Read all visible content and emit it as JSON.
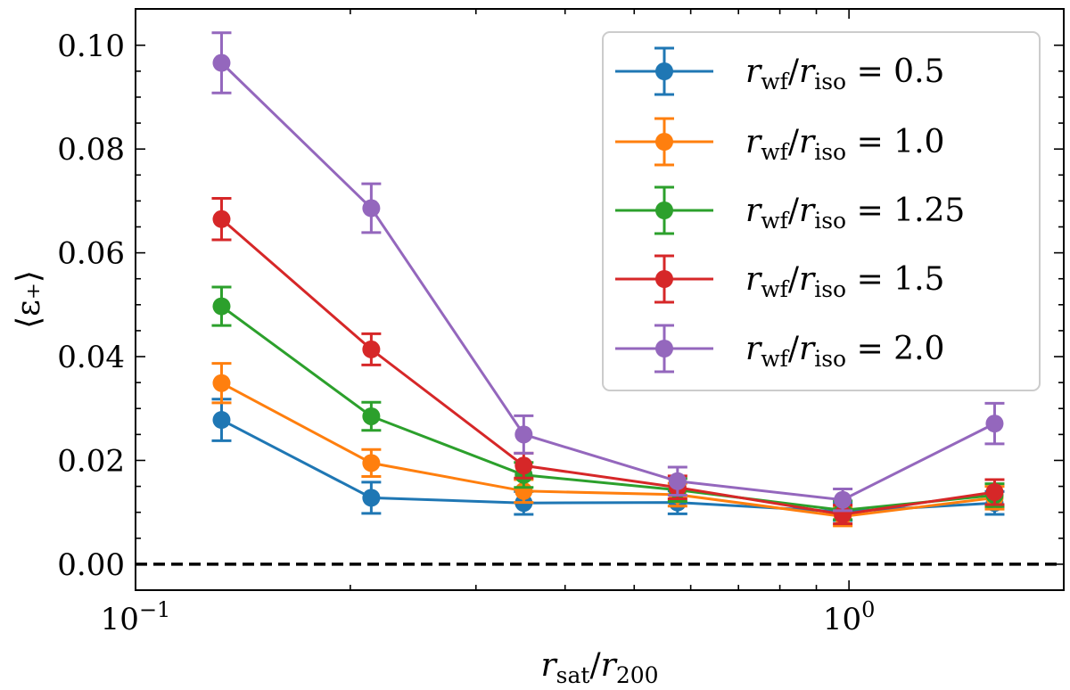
{
  "chart_data": {
    "type": "line",
    "xscale": "log",
    "x": [
      0.132,
      0.214,
      0.35,
      0.575,
      0.98,
      1.6
    ],
    "xlim": [
      0.1,
      2.0
    ],
    "ylim": [
      -0.005,
      0.107
    ],
    "xlabel": {
      "base": "r",
      "sub": "sat",
      "sep": "/",
      "base2": "r",
      "sub2": "200"
    },
    "ylabel": "⟨ε₊⟩",
    "x_ticks": [
      {
        "value": 0.1,
        "base": "10",
        "exp": "−1"
      },
      {
        "value": 1.0,
        "base": "10",
        "exp": "0"
      }
    ],
    "y_ticks": [
      {
        "value": 0.0,
        "label": "0.00"
      },
      {
        "value": 0.02,
        "label": "0.02"
      },
      {
        "value": 0.04,
        "label": "0.04"
      },
      {
        "value": 0.06,
        "label": "0.06"
      },
      {
        "value": 0.08,
        "label": "0.08"
      },
      {
        "value": 0.1,
        "label": "0.10"
      }
    ],
    "reference_line": {
      "y": 0.0,
      "style": "dashed",
      "color": "#000000"
    },
    "legend_position": "top-right",
    "series": [
      {
        "name": "0.5",
        "color": "#1f77b4",
        "values": [
          0.0278,
          0.0128,
          0.0118,
          0.0119,
          0.0101,
          0.0118
        ],
        "errors": [
          0.004,
          0.003,
          0.0022,
          0.0022,
          0.0017,
          0.0022
        ]
      },
      {
        "name": "1.0",
        "color": "#ff7f0e",
        "values": [
          0.0349,
          0.0195,
          0.0141,
          0.0134,
          0.0092,
          0.0128
        ],
        "errors": [
          0.0038,
          0.0026,
          0.0022,
          0.0022,
          0.0018,
          0.0022
        ]
      },
      {
        "name": "1.25",
        "color": "#2ca02c",
        "values": [
          0.0497,
          0.0285,
          0.0172,
          0.0143,
          0.0104,
          0.0133
        ],
        "errors": [
          0.0037,
          0.0027,
          0.0024,
          0.0022,
          0.0018,
          0.0022
        ]
      },
      {
        "name": "1.5",
        "color": "#d62728",
        "values": [
          0.0665,
          0.0414,
          0.019,
          0.0148,
          0.0096,
          0.0139
        ],
        "errors": [
          0.004,
          0.003,
          0.0024,
          0.0022,
          0.0018,
          0.0024
        ]
      },
      {
        "name": "2.0",
        "color": "#9467bd",
        "values": [
          0.0966,
          0.0686,
          0.025,
          0.016,
          0.0124,
          0.0271
        ],
        "errors": [
          0.0058,
          0.0047,
          0.0036,
          0.0027,
          0.0021,
          0.0039
        ]
      }
    ],
    "legend_label": {
      "base": "r",
      "sub": "wf",
      "sep": "/",
      "base2": "r",
      "sub2": "iso",
      "eq": " = "
    }
  }
}
